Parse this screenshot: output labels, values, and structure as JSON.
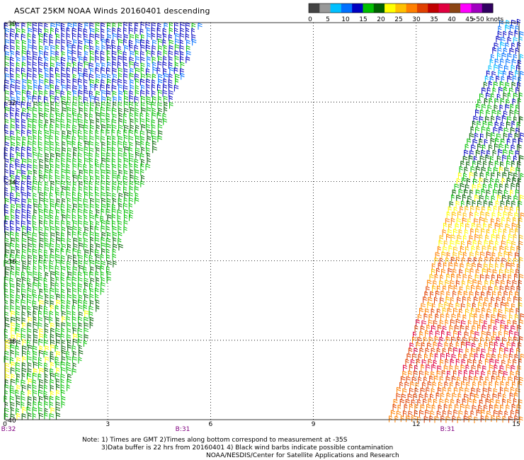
{
  "title": "ASCAT 25KM NOAA Winds 20160401 descending",
  "legend": {
    "labels": [
      "0",
      "5",
      "10",
      "15",
      "20",
      "25",
      "30",
      "35",
      "40",
      "45",
      ">50 knots"
    ],
    "colors": [
      "#444444",
      "#999999",
      "#00c0ff",
      "#0070ff",
      "#0000c0",
      "#00c000",
      "#006000",
      "#ffff00",
      "#ffc000",
      "#ff8000",
      "#e04000",
      "#c00000",
      "#e00040",
      "#8b4513",
      "#ff00ff",
      "#a000c0",
      "#300060"
    ]
  },
  "map": {
    "lat_labels": [
      "-30",
      "-32",
      "-34",
      "-36",
      "-38",
      "-40"
    ],
    "lon_labels": [
      "0",
      "3",
      "6",
      "9",
      "12",
      "15"
    ],
    "pass_labels": [
      {
        "text": "B:32",
        "color": "#800080"
      },
      {
        "text": "B:31",
        "color": "#800080"
      },
      {
        "text": "B:31",
        "color": "#800080"
      }
    ]
  },
  "notes": [
    "Note: 1) Times are GMT 2)Times along bottom correspond to measurement at -35S",
    "3)Data buffer is 22 hrs from 20160401 4) Black wind barbs indicate possible contamination",
    "NOAA/NESDIS/Center for Satellite Applications and Research"
  ]
}
